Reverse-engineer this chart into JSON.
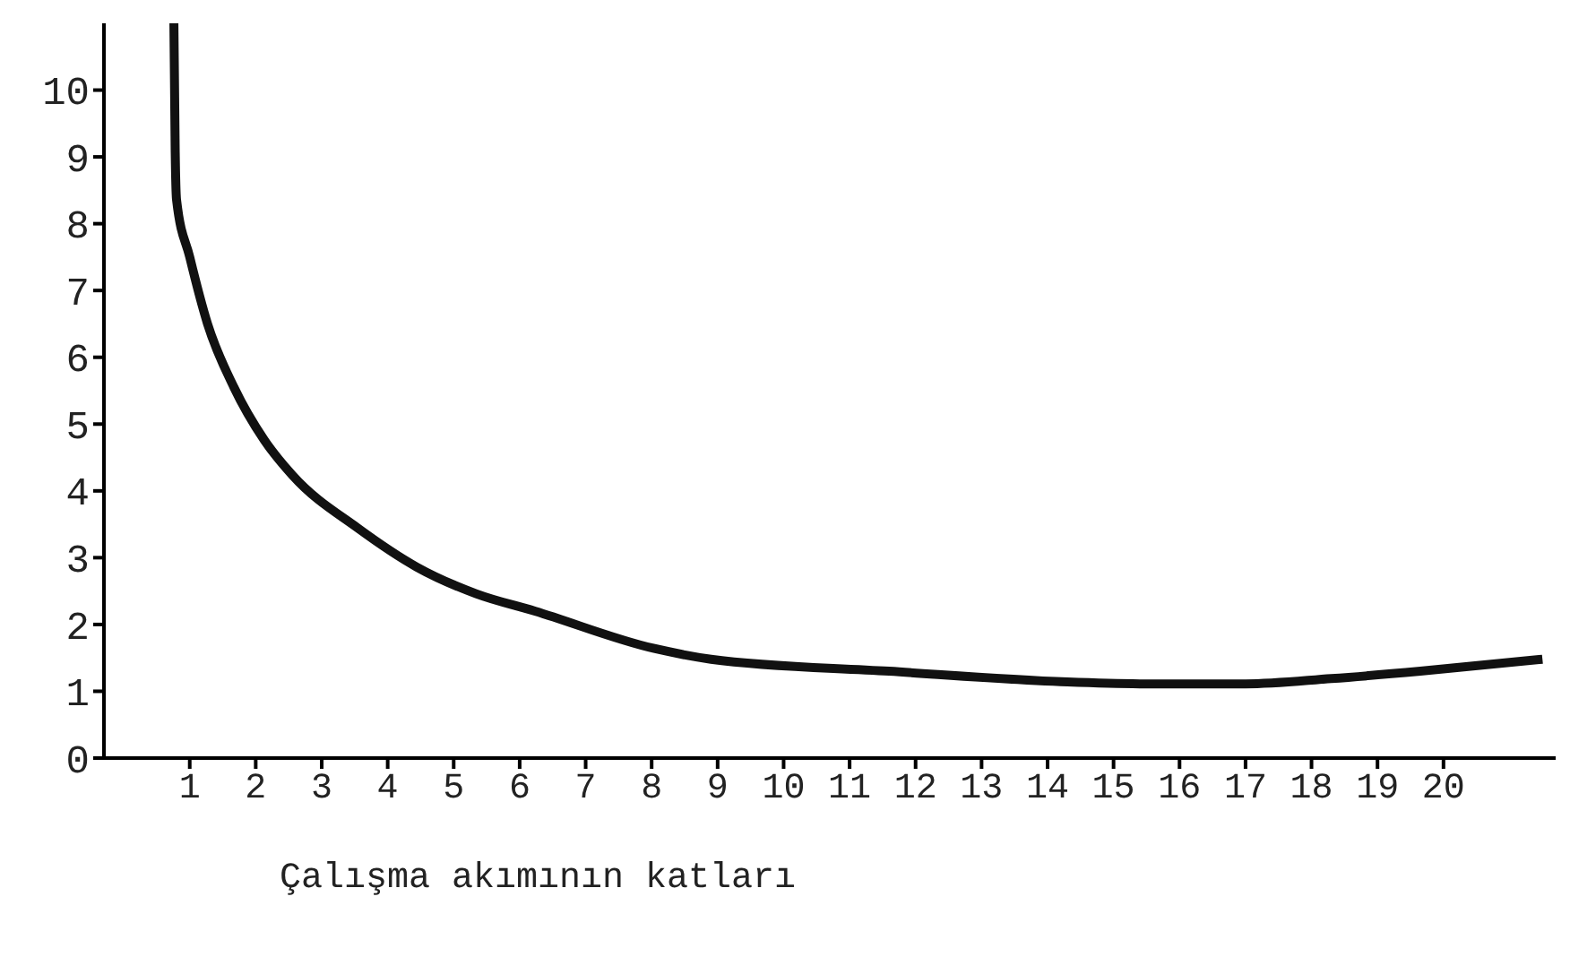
{
  "chart_data": {
    "type": "line",
    "xlabel": "Çalışma akımının katları",
    "x": [
      0.76,
      0.78,
      0.8,
      1.0,
      1.27,
      1.67,
      2.13,
      2.56,
      3.55,
      4.44,
      5.34,
      6.23,
      8.04,
      8.9,
      11.6,
      14.3,
      15.6,
      17.0,
      18.3,
      19.65,
      21.5
    ],
    "values": [
      11,
      9.07,
      8.36,
      7.5,
      6.5,
      5.55,
      4.76,
      4.23,
      3.44,
      2.86,
      2.46,
      2.2,
      1.64,
      1.48,
      1.3,
      1.14,
      1.11,
      1.11,
      1.19,
      1.3,
      1.48
    ],
    "color": "#111111",
    "xlim": [
      -0.3,
      21.7
    ],
    "xticks": [
      1,
      2,
      3,
      4,
      5,
      6,
      7,
      8,
      9,
      10,
      11,
      12,
      13,
      14,
      15,
      16,
      17,
      18,
      19,
      20
    ],
    "ylim": [
      0,
      11
    ],
    "yticks": [
      0,
      1,
      2,
      3,
      4,
      5,
      6,
      7,
      8,
      9,
      10
    ],
    "grid": false,
    "marker": "none",
    "line_style": "solid"
  }
}
